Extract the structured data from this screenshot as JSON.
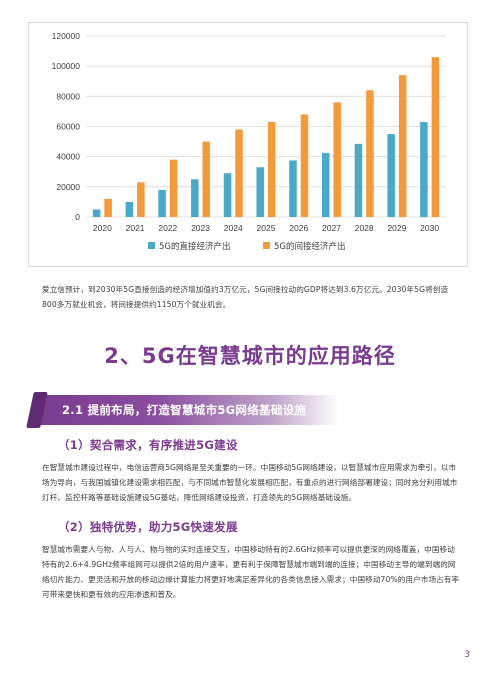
{
  "chart_data": {
    "type": "bar",
    "categories": [
      "2020",
      "2021",
      "2022",
      "2023",
      "2024",
      "2025",
      "2026",
      "2027",
      "2028",
      "2029",
      "2030"
    ],
    "series": [
      {
        "name": "5G的直接经济产出",
        "color": "#4aa8c8",
        "values": [
          5000,
          10000,
          18000,
          25000,
          29000,
          33000,
          37500,
          42500,
          48500,
          55000,
          63000
        ]
      },
      {
        "name": "5G的间接经济产出",
        "color": "#f39a3c",
        "values": [
          12000,
          23000,
          38000,
          50000,
          58000,
          63000,
          68000,
          76000,
          84000,
          94000,
          106000
        ]
      }
    ],
    "ylim": [
      0,
      120000
    ],
    "yticks": [
      "0",
      "20000",
      "40000",
      "60000",
      "80000",
      "100000",
      "120000"
    ],
    "grid": true,
    "legend": "bottom-center"
  },
  "paragraph1": "爱立信预计，到2030年5G直接创造的经济增加值约3万亿元，5G间接拉动的GDP将达到3.6万亿元。2030年5G将创造800多万就业机会，将间接提供约1150万个就业机会。",
  "section_title": "2、5G在智慧城市的应用路径",
  "banner_title": "2.1 提前布局，打造智慧城市5G网络基础设施",
  "sub1_title": "（1）契合需求，有序推进5G建设",
  "paragraph2": "在智慧城市建设过程中，电信运营商5G网络是至关重要的一环。中国移动5G网络建设，以智慧城市应用需求为牵引，以市场为导向，与我国城镇化建设需求相匹配，与不同城市智慧化发展相匹配，有重点的进行网络部署建设；同时充分利用城市灯杆、监控杆路等基础设施建设5G基站，降低网络建设投资，打造领先的5G网络基础设施。",
  "sub2_title": "（2）独特优势，助力5G快速发展",
  "paragraph3": "智慧城市需要人与物、人与人、物与物的实时连接交互，中国移动特有的2.6GHz频率可以提供更深的网络覆盖，中国移动特有的2.6+4.9GHz频率组网可以提供2倍的用户速率，更有利于保障智慧城市端到端的连接；中国移动主导的端到端的网络切片能力、更灵活和开放的移动边缘计算能力将更好地满足差异化的各类信息接入需求；中国移动70%的用户市场占有率可带来更快和更有效的应用渗透和普及。",
  "page_number": "3"
}
